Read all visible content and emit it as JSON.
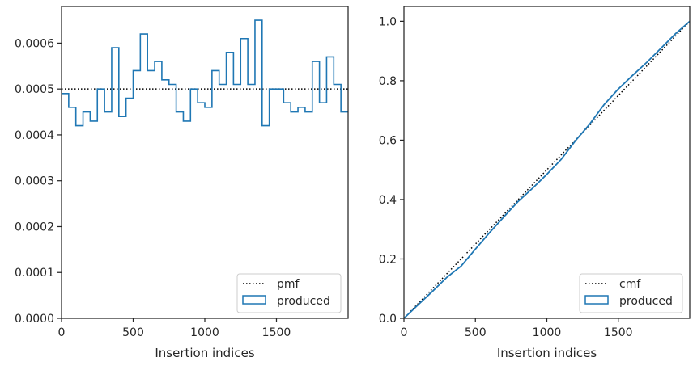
{
  "chart_data": [
    {
      "type": "step",
      "xlabel": "Insertion indices",
      "ylabel": "",
      "xlim": [
        0,
        2000
      ],
      "ylim": [
        0,
        0.00068
      ],
      "xticks": [
        0,
        500,
        1000,
        1500
      ],
      "xtick_labels": [
        "0",
        "500",
        "1000",
        "1500"
      ],
      "yticks": [
        0,
        0.0001,
        0.0002,
        0.0003,
        0.0004,
        0.0005,
        0.0006
      ],
      "ytick_labels": [
        "0.0000",
        "0.0001",
        "0.0002",
        "0.0003",
        "0.0004",
        "0.0005",
        "0.0006"
      ],
      "grid": false,
      "legend_position": "lower-right",
      "series": [
        {
          "name": "pmf",
          "style": "dotted",
          "color": "#000000",
          "x": [
            0,
            2000
          ],
          "y": [
            0.0005,
            0.0005
          ]
        },
        {
          "name": "produced",
          "style": "step",
          "color": "#1f77b4",
          "bin_edges": [
            0,
            50,
            100,
            150,
            200,
            250,
            300,
            350,
            400,
            450,
            500,
            550,
            600,
            650,
            700,
            750,
            800,
            850,
            900,
            950,
            1000,
            1050,
            1100,
            1150,
            1200,
            1250,
            1300,
            1350,
            1400,
            1450,
            1500,
            1550,
            1600,
            1650,
            1700,
            1750,
            1800,
            1850,
            1900,
            1950,
            2000
          ],
          "values": [
            0.00049,
            0.00046,
            0.00042,
            0.00045,
            0.00043,
            0.0005,
            0.00045,
            0.00059,
            0.00044,
            0.00048,
            0.00054,
            0.00062,
            0.00054,
            0.00056,
            0.00052,
            0.00051,
            0.00045,
            0.00043,
            0.0005,
            0.00047,
            0.00046,
            0.00054,
            0.00051,
            0.00058,
            0.00051,
            0.00061,
            0.00051,
            0.00065,
            0.00042,
            0.0005,
            0.0005,
            0.00047,
            0.00045,
            0.00046,
            0.00045,
            0.00056,
            0.00047,
            0.00057,
            0.00051,
            0.00045
          ]
        }
      ]
    },
    {
      "type": "line",
      "xlabel": "Insertion indices",
      "ylabel": "",
      "xlim": [
        0,
        2000
      ],
      "ylim": [
        0,
        1.05
      ],
      "xticks": [
        0,
        500,
        1000,
        1500
      ],
      "xtick_labels": [
        "0",
        "500",
        "1000",
        "1500"
      ],
      "yticks": [
        0,
        0.2,
        0.4,
        0.6,
        0.8,
        1.0
      ],
      "ytick_labels": [
        "0.0",
        "0.2",
        "0.4",
        "0.6",
        "0.8",
        "1.0"
      ],
      "grid": false,
      "legend_position": "lower-right",
      "series": [
        {
          "name": "cmf",
          "style": "dotted",
          "color": "#000000",
          "x": [
            0,
            2000
          ],
          "y": [
            0,
            1.0
          ]
        },
        {
          "name": "produced",
          "style": "line",
          "color": "#1f77b4",
          "x": [
            0,
            100,
            200,
            300,
            400,
            500,
            600,
            700,
            800,
            900,
            1000,
            1100,
            1200,
            1300,
            1400,
            1500,
            1600,
            1700,
            1800,
            1900,
            2000
          ],
          "y": [
            0,
            0.046,
            0.091,
            0.138,
            0.176,
            0.233,
            0.289,
            0.342,
            0.394,
            0.438,
            0.485,
            0.535,
            0.598,
            0.654,
            0.719,
            0.772,
            0.818,
            0.862,
            0.91,
            0.958,
            1.0
          ]
        }
      ],
      "legend_entries": [
        "cmf",
        "produced"
      ]
    }
  ]
}
